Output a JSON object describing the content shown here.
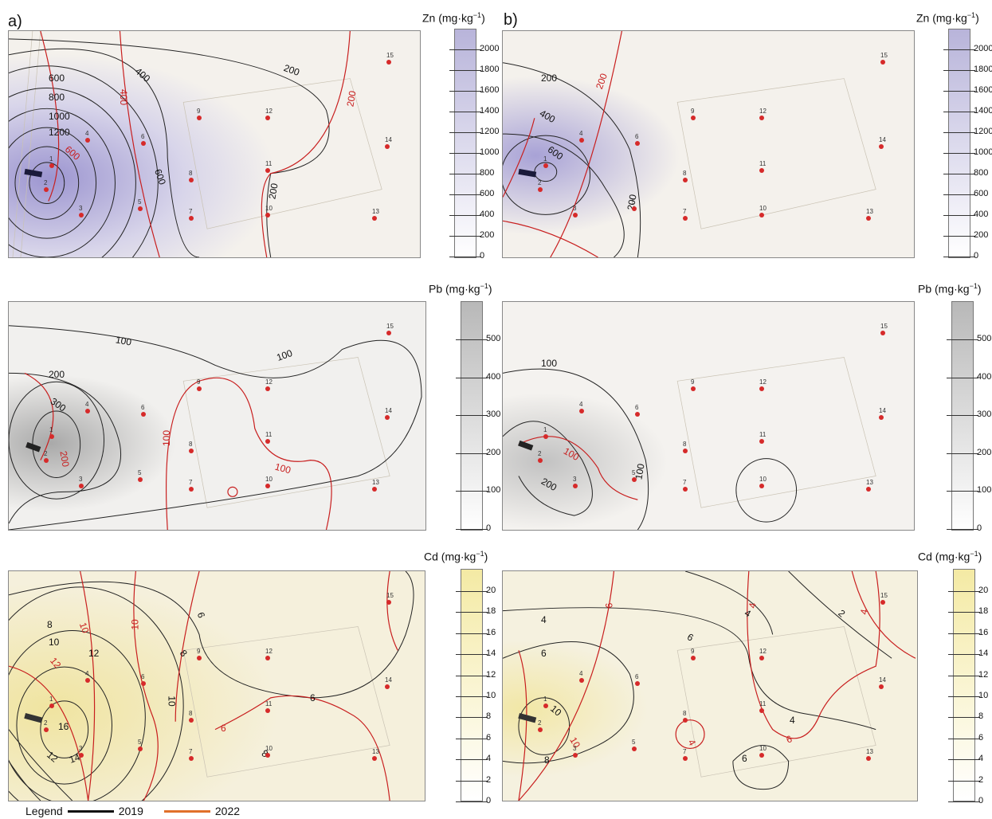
{
  "panel_labels": {
    "a": "a)",
    "b": "b)"
  },
  "units": {
    "zn": "Zn (mg·kg",
    "pb": "Pb (mg·kg",
    "cd": "Cd (mg·kg",
    "exp": "−1",
    "close": ")"
  },
  "scales": {
    "zn": {
      "ticks": [
        "2000",
        "1800",
        "1600",
        "1400",
        "1200",
        "1000",
        "800",
        "600",
        "400",
        "200",
        "0"
      ],
      "color": "#b8b4da"
    },
    "pb": {
      "ticks": [
        "500",
        "400",
        "300",
        "200",
        "100",
        "0"
      ],
      "color": "#b8b8b8"
    },
    "cd": {
      "ticks": [
        "20",
        "18",
        "16",
        "14",
        "12",
        "10",
        "8",
        "6",
        "4",
        "2",
        "0"
      ],
      "color": "#f4eaa4"
    }
  },
  "sampling_points": [
    "1",
    "2",
    "3",
    "4",
    "5",
    "6",
    "7",
    "8",
    "9",
    "10",
    "11",
    "12",
    "13",
    "14",
    "15"
  ],
  "contour_labels": {
    "zn_a": [
      "600",
      "800",
      "1000",
      "1200",
      "400",
      "200",
      "600",
      "200",
      "400",
      "600",
      "200"
    ],
    "zn_b": [
      "200",
      "400",
      "600",
      "200",
      "200"
    ],
    "pb_a": [
      "100",
      "200",
      "300",
      "100",
      "100",
      "100",
      "200"
    ],
    "pb_b": [
      "100",
      "200",
      "100",
      "100"
    ],
    "cd_a": [
      "8",
      "10",
      "12",
      "16",
      "14",
      "12",
      "6",
      "8",
      "10",
      "6",
      "8",
      "10",
      "12",
      "10",
      "6",
      "8"
    ],
    "cd_b": [
      "4",
      "6",
      "10",
      "8",
      "6",
      "6",
      "4",
      "2",
      "4",
      "4",
      "6",
      "6",
      "4",
      "10",
      "4"
    ]
  },
  "legend": {
    "title": "Legend",
    "y2019": "2019",
    "y2022": "2022",
    "color2019": "#111111",
    "color2022": "#e0702a"
  },
  "colors": {
    "contour_2019": "#222222",
    "contour_2022": "#c81e1e",
    "point": "#d62a2a",
    "basemap": "#f4f1ec"
  }
}
